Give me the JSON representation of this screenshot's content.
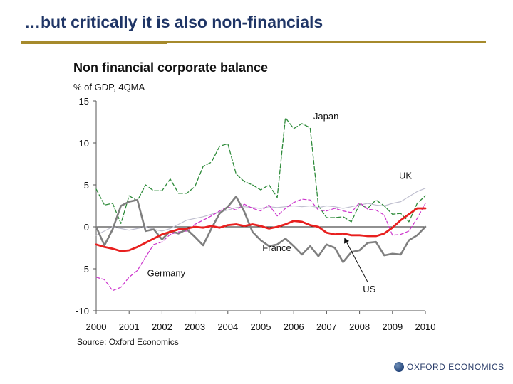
{
  "slide": {
    "title": "…but critically it is also non-financials"
  },
  "logo": {
    "text": "OXFORD ECONOMICS",
    "icon": "globe-icon"
  },
  "chart_data": {
    "type": "line",
    "title": "Non financial corporate balance",
    "ylabel": "% of GDP, 4QMA",
    "source": "Source: Oxford Economics",
    "xlim": [
      2000,
      2010
    ],
    "ylim": [
      -10,
      15
    ],
    "yticks": [
      15,
      10,
      5,
      0,
      -5,
      -10
    ],
    "ytick_labels": [
      "15",
      "10",
      "5",
      "0",
      "-5",
      "-10"
    ],
    "xticks": [
      2000,
      2001,
      2002,
      2003,
      2004,
      2005,
      2006,
      2007,
      2008,
      2009,
      2010
    ],
    "xtick_labels": [
      "2000",
      "2001",
      "2002",
      "2003",
      "2004",
      "2005",
      "2006",
      "2007",
      "2008",
      "2009",
      "2010"
    ],
    "grid": false,
    "zero_line": true,
    "series": [
      {
        "name": "Japan",
        "color": "#2e8b3a",
        "dash": "6,3",
        "width": 1.3,
        "label_pos": [
          2006.6,
          12.8
        ],
        "points": [
          [
            2000,
            4.5
          ],
          [
            2000.25,
            2.6
          ],
          [
            2000.5,
            2.8
          ],
          [
            2000.75,
            0.4
          ],
          [
            2001,
            3.7
          ],
          [
            2001.25,
            3.1
          ],
          [
            2001.5,
            5
          ],
          [
            2001.75,
            4.3
          ],
          [
            2002,
            4.3
          ],
          [
            2002.25,
            5.7
          ],
          [
            2002.5,
            4
          ],
          [
            2002.75,
            4
          ],
          [
            2003,
            4.8
          ],
          [
            2003.25,
            7.2
          ],
          [
            2003.5,
            7.7
          ],
          [
            2003.75,
            9.6
          ],
          [
            2004,
            9.9
          ],
          [
            2004.25,
            6.3
          ],
          [
            2004.5,
            5.4
          ],
          [
            2004.75,
            5
          ],
          [
            2005,
            4.4
          ],
          [
            2005.25,
            5
          ],
          [
            2005.5,
            3.5
          ],
          [
            2005.75,
            13
          ],
          [
            2006,
            11.7
          ],
          [
            2006.25,
            12.3
          ],
          [
            2006.5,
            11.8
          ],
          [
            2006.75,
            2.5
          ],
          [
            2007,
            1.1
          ],
          [
            2007.25,
            1.1
          ],
          [
            2007.5,
            1.2
          ],
          [
            2007.75,
            0.6
          ],
          [
            2008,
            2.7
          ],
          [
            2008.25,
            2.2
          ],
          [
            2008.5,
            3.2
          ],
          [
            2008.75,
            2.5
          ],
          [
            2009,
            1.5
          ],
          [
            2009.25,
            1.6
          ],
          [
            2009.5,
            0.6
          ],
          [
            2009.75,
            2.8
          ],
          [
            2010,
            3.7
          ]
        ]
      },
      {
        "name": "UK",
        "color": "#bfbfcf",
        "dash": "",
        "width": 1.2,
        "label_pos": [
          2009.2,
          5.7
        ],
        "points": [
          [
            2000,
            -1
          ],
          [
            2000.25,
            -0.5
          ],
          [
            2000.5,
            0
          ],
          [
            2000.75,
            -0.2
          ],
          [
            2001,
            -0.4
          ],
          [
            2001.25,
            -0.2
          ],
          [
            2001.5,
            0
          ],
          [
            2001.75,
            -0.3
          ],
          [
            2002,
            -0.5
          ],
          [
            2002.25,
            -0.2
          ],
          [
            2002.5,
            0.3
          ],
          [
            2002.75,
            0.8
          ],
          [
            2003,
            1
          ],
          [
            2003.25,
            1.2
          ],
          [
            2003.5,
            1.5
          ],
          [
            2003.75,
            1.8
          ],
          [
            2004,
            2
          ],
          [
            2004.25,
            2.3
          ],
          [
            2004.5,
            2.4
          ],
          [
            2004.75,
            2.3
          ],
          [
            2005,
            2.2
          ],
          [
            2005.25,
            2.4
          ],
          [
            2005.5,
            2.3
          ],
          [
            2005.75,
            2.4
          ],
          [
            2006,
            2.5
          ],
          [
            2006.25,
            2.4
          ],
          [
            2006.5,
            2.5
          ],
          [
            2006.75,
            2.3
          ],
          [
            2007,
            2.5
          ],
          [
            2007.25,
            2.4
          ],
          [
            2007.5,
            2.2
          ],
          [
            2007.75,
            2.4
          ],
          [
            2008,
            2.6
          ],
          [
            2008.25,
            2.8
          ],
          [
            2008.5,
            2.6
          ],
          [
            2008.75,
            2.5
          ],
          [
            2009,
            2.8
          ],
          [
            2009.25,
            3
          ],
          [
            2009.5,
            3.6
          ],
          [
            2009.75,
            4.2
          ],
          [
            2010,
            4.6
          ]
        ]
      },
      {
        "name": "France",
        "color": "#cc33cc",
        "dash": "5,3",
        "width": 1.2,
        "label_pos": [
          2005.05,
          -2.9
        ],
        "points": [
          [
            2000,
            -6
          ],
          [
            2000.25,
            -6.3
          ],
          [
            2000.5,
            -7.6
          ],
          [
            2000.75,
            -7.2
          ],
          [
            2001,
            -6
          ],
          [
            2001.25,
            -5.2
          ],
          [
            2001.5,
            -3.6
          ],
          [
            2001.75,
            -2.1
          ],
          [
            2002,
            -1.8
          ],
          [
            2002.25,
            -0.9
          ],
          [
            2002.5,
            -0.6
          ],
          [
            2002.75,
            -0.5
          ],
          [
            2003,
            0.3
          ],
          [
            2003.25,
            0.8
          ],
          [
            2003.5,
            1.3
          ],
          [
            2003.75,
            1.9
          ],
          [
            2004,
            2.4
          ],
          [
            2004.25,
            2
          ],
          [
            2004.5,
            2.7
          ],
          [
            2004.75,
            2.2
          ],
          [
            2005,
            1.9
          ],
          [
            2005.25,
            2.6
          ],
          [
            2005.5,
            1.3
          ],
          [
            2005.75,
            2.2
          ],
          [
            2006,
            2.9
          ],
          [
            2006.25,
            3.3
          ],
          [
            2006.5,
            3.2
          ],
          [
            2006.75,
            2
          ],
          [
            2007,
            1.9
          ],
          [
            2007.25,
            2.2
          ],
          [
            2007.5,
            1.9
          ],
          [
            2007.75,
            1.7
          ],
          [
            2008,
            2.9
          ],
          [
            2008.25,
            2.1
          ],
          [
            2008.5,
            2
          ],
          [
            2008.75,
            1.4
          ],
          [
            2009,
            -1
          ],
          [
            2009.25,
            -0.9
          ],
          [
            2009.5,
            -0.5
          ],
          [
            2009.75,
            1
          ],
          [
            2010,
            2.8
          ]
        ]
      },
      {
        "name": "Germany",
        "color": "#7f7f7f",
        "dash": "",
        "width": 2.6,
        "label_pos": [
          2001.55,
          -5.9
        ],
        "points": [
          [
            2000,
            0
          ],
          [
            2000.25,
            -2.2
          ],
          [
            2000.5,
            -0.3
          ],
          [
            2000.75,
            2.5
          ],
          [
            2001,
            3
          ],
          [
            2001.25,
            3.2
          ],
          [
            2001.5,
            -0.5
          ],
          [
            2001.75,
            -0.3
          ],
          [
            2002,
            -1.5
          ],
          [
            2002.25,
            -0.5
          ],
          [
            2002.5,
            -0.8
          ],
          [
            2002.75,
            -0.3
          ],
          [
            2003,
            -1.2
          ],
          [
            2003.25,
            -2.2
          ],
          [
            2003.5,
            -0.2
          ],
          [
            2003.75,
            1.6
          ],
          [
            2004,
            2.4
          ],
          [
            2004.25,
            3.6
          ],
          [
            2004.5,
            1.8
          ],
          [
            2004.75,
            -0.6
          ],
          [
            2005,
            -1.6
          ],
          [
            2005.25,
            -2.3
          ],
          [
            2005.5,
            -2.1
          ],
          [
            2005.75,
            -1.4
          ],
          [
            2006,
            -2.3
          ],
          [
            2006.25,
            -3.3
          ],
          [
            2006.5,
            -2.3
          ],
          [
            2006.75,
            -3.5
          ],
          [
            2007,
            -2.1
          ],
          [
            2007.25,
            -2.5
          ],
          [
            2007.5,
            -4.2
          ],
          [
            2007.75,
            -3
          ],
          [
            2008,
            -2.8
          ],
          [
            2008.25,
            -1.9
          ],
          [
            2008.5,
            -1.8
          ],
          [
            2008.75,
            -3.4
          ],
          [
            2009,
            -3.2
          ],
          [
            2009.25,
            -3.3
          ],
          [
            2009.5,
            -1.6
          ],
          [
            2009.75,
            -1
          ],
          [
            2010,
            0
          ]
        ]
      },
      {
        "name": "US",
        "color": "#e8201f",
        "dash": "",
        "width": 2.8,
        "label_pos": [
          2008.1,
          -7.8
        ],
        "points": [
          [
            2000,
            -2.1
          ],
          [
            2000.25,
            -2.4
          ],
          [
            2000.5,
            -2.6
          ],
          [
            2000.75,
            -2.9
          ],
          [
            2001,
            -2.8
          ],
          [
            2001.25,
            -2.4
          ],
          [
            2001.5,
            -1.9
          ],
          [
            2001.75,
            -1.4
          ],
          [
            2002,
            -0.9
          ],
          [
            2002.25,
            -0.6
          ],
          [
            2002.5,
            -0.3
          ],
          [
            2002.75,
            -0.2
          ],
          [
            2003,
            0
          ],
          [
            2003.25,
            -0.1
          ],
          [
            2003.5,
            0.1
          ],
          [
            2003.75,
            -0.1
          ],
          [
            2004,
            0.2
          ],
          [
            2004.25,
            0.3
          ],
          [
            2004.5,
            0.1
          ],
          [
            2004.75,
            0.3
          ],
          [
            2005,
            0.1
          ],
          [
            2005.25,
            -0.2
          ],
          [
            2005.5,
            0
          ],
          [
            2005.75,
            0.3
          ],
          [
            2006,
            0.7
          ],
          [
            2006.25,
            0.6
          ],
          [
            2006.5,
            0.2
          ],
          [
            2006.75,
            0
          ],
          [
            2007,
            -0.7
          ],
          [
            2007.25,
            -0.9
          ],
          [
            2007.5,
            -0.8
          ],
          [
            2007.75,
            -1
          ],
          [
            2008,
            -1
          ],
          [
            2008.25,
            -1.1
          ],
          [
            2008.5,
            -1.1
          ],
          [
            2008.75,
            -0.8
          ],
          [
            2009,
            -0.1
          ],
          [
            2009.25,
            0.8
          ],
          [
            2009.5,
            1.5
          ],
          [
            2009.75,
            2.2
          ],
          [
            2010,
            2.2
          ]
        ]
      }
    ],
    "annotations": [
      {
        "text": "",
        "target_series": "US",
        "from": [
          2008.25,
          -6.6
        ],
        "to": [
          2007.55,
          -1.4
        ]
      }
    ]
  }
}
